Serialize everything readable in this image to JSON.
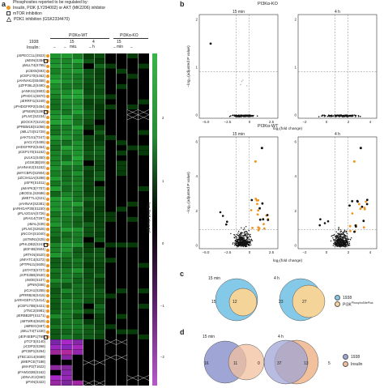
{
  "panel_a": {
    "letter": "a",
    "legend_title": "Phosphosites reported to be regulated by:",
    "legend_items": [
      {
        "symbol": "orange-circle",
        "label": "Insulin, PI3K (LY294002) or AKT (MK2206) inhibitor",
        "color": "#f0941f"
      },
      {
        "symbol": "square",
        "label": "mTOR inhibition"
      },
      {
        "symbol": "triangle",
        "label": "PDK1 inhibition (GSK2334470)"
      }
    ],
    "header_1938": "1938:",
    "header_insulin": "Insulin:",
    "group_wt": "PI3Kα-WT",
    "group_ko": "PI3Kα-KO",
    "col_labels_1938": [
      "−",
      "+",
      "−",
      "+",
      "−",
      "+"
    ],
    "col_labels_time": [
      "15 min",
      "4 h",
      "15 min"
    ],
    "col_labels_insulin": [
      "−",
      "−",
      "−",
      "−",
      "−",
      "−"
    ],
    "colorbar_label": "log₂(fold change)",
    "colorbar_ticks": [
      "2",
      "1",
      "0",
      "−1",
      "−2"
    ],
    "rows": [
      {
        "label": "pSPECC1L(S923)",
        "orange": true
      },
      {
        "label": "pMSN(S384)",
        "orange": true,
        "tri": true
      },
      {
        "label": "pMLLT4(S795)",
        "orange": true
      },
      {
        "label": "pCBX5(S93)",
        "orange": true
      },
      {
        "label": "pCEP170(S462)",
        "orange": true
      },
      {
        "label": "pAHNAK2(S5458)",
        "orange": true
      },
      {
        "label": "pZFP36L2(S490)",
        "orange": true
      },
      {
        "label": "pANKS1(S903)",
        "orange": true
      },
      {
        "label": "pPHDC1(S870)",
        "orange": true
      },
      {
        "label": "pERRFI1(S249)",
        "orange": true
      },
      {
        "label": "pPHDGFRP2(S454)",
        "orange": true
      },
      {
        "label": "pPNISR(S290)",
        "orange": true,
        "sq": true
      },
      {
        "label": "pFLNC(S2234)",
        "orange": true
      },
      {
        "label": "pDOCK7(S219)",
        "orange": true
      },
      {
        "label": "pPRBM1B(S1058)",
        "orange": true
      },
      {
        "label": "pMLLT4(S1729)",
        "orange": true
      },
      {
        "label": "pAKT1S1(T247)",
        "orange": true
      },
      {
        "label": "pACLY(S455)",
        "orange": true
      },
      {
        "label": "pHDGFRP2(S454)",
        "orange": true
      },
      {
        "label": "pCEP170(S1152)",
        "orange": true
      },
      {
        "label": "pULK1(S450)",
        "orange": true
      },
      {
        "label": "pGSK3B(S9)",
        "orange": true
      },
      {
        "label": "pAHNAK2(S1152)",
        "orange": true
      },
      {
        "label": "pMYCBP2(S2904)",
        "orange": true
      },
      {
        "label": "pZC3H11A(S288)",
        "orange": true
      },
      {
        "label": "pSFR(S1011)",
        "orange": true
      },
      {
        "label": "pMAPK3(Y707)",
        "orange": true
      },
      {
        "label": "pBOD1L(S2686)",
        "orange": true
      },
      {
        "label": "pMETTL1(S21)",
        "orange": true
      },
      {
        "label": "pAHNAK(S2381)",
        "orange": true
      },
      {
        "label": "pARHGAP35(S1150)",
        "orange": true
      },
      {
        "label": "pPLA2G4A(S726)",
        "orange": true
      },
      {
        "label": "pRAI14(T297)",
        "orange": true
      },
      {
        "label": "pMAL(S39)",
        "orange": true
      },
      {
        "label": "pFLNC(S2626)",
        "orange": true
      },
      {
        "label": "pNCOA(S1040)",
        "orange": true
      },
      {
        "label": "pSTMN1(S25)",
        "orange": true
      },
      {
        "label": "pPHLDB2(S241)",
        "orange": true,
        "sq": true
      },
      {
        "label": "pEIF4B(S504)",
        "orange": true
      },
      {
        "label": "pRTKN(S520)",
        "orange": true
      },
      {
        "label": "pNFATC4(S272)",
        "orange": true
      },
      {
        "label": "pPTPN21(S605)",
        "orange": true
      },
      {
        "label": "pSTAT3(S727)",
        "orange": true
      },
      {
        "label": "pVPS35B(S530)",
        "orange": true
      },
      {
        "label": "pNOE(S107)",
        "orange": true
      },
      {
        "label": "pPNN(S66)",
        "orange": true
      },
      {
        "label": "pGJA1(S255)",
        "orange": true
      },
      {
        "label": "pPRRB26(S415)",
        "orange": true
      },
      {
        "label": "pARHGEF17(S414)",
        "orange": true
      },
      {
        "label": "pCEP170B(S421)",
        "orange": true
      },
      {
        "label": "pTNC2(S981)",
        "orange": true
      },
      {
        "label": "pERBB2IP(S1171)",
        "orange": true
      },
      {
        "label": "pMTMR4(S629)",
        "orange": true
      },
      {
        "label": "pMREG(S97)",
        "orange": true
      },
      {
        "label": "pMLLT4(T1330)",
        "orange": true
      },
      {
        "label": "pEIF4EBP1(T69)",
        "orange": true,
        "tri": true
      },
      {
        "label": "pTCF3(S140)",
        "orange": false
      },
      {
        "label": "pCDP2(S268)",
        "orange": false
      },
      {
        "label": "pPCBP1(S264)",
        "orange": false
      },
      {
        "label": "pTBC1D14(S689)",
        "orange": false
      },
      {
        "label": "pMEPCE(T188)",
        "orange": false
      },
      {
        "label": "pMAP2(T1622)",
        "orange": false
      },
      {
        "label": "pFAM102B(S162)",
        "orange": false
      },
      {
        "label": "pDNAJC2(S60)",
        "orange": false
      },
      {
        "label": "pPXN(S322)",
        "orange": false
      }
    ]
  },
  "panel_b": {
    "letter": "b",
    "ko_title": "PI3Kα-KO",
    "wt_title": "PI3Kα-WT",
    "time_15": "15 min",
    "time_4h": "4 h",
    "ylabel": "−log₁₀(adjusted P value)",
    "xlabel": "log₂(fold change)",
    "ko_yticks": [
      "2",
      "1",
      "0"
    ],
    "wt_yticks": [
      "6",
      "4",
      "2",
      "0"
    ],
    "xticks_15": [
      "−5.0",
      "−2.5",
      "0",
      "2.5"
    ],
    "xticks_4h": [
      "−2",
      "0",
      "2",
      "4"
    ]
  },
  "panel_c": {
    "letter": "c",
    "title_15": "15 min",
    "title_4h": "4 h",
    "venn_15": {
      "only_1938": "15",
      "both": "12"
    },
    "venn_4h": {
      "only_1938": "23",
      "both": "27"
    },
    "legend": [
      {
        "label": "1938",
        "color": "#84c9e8"
      },
      {
        "label": "PI3K",
        "sup": "PhosphoSitePlus",
        "color": "#f5d49a"
      }
    ]
  },
  "panel_d": {
    "letter": "d",
    "title_15": "15 min",
    "title_4h": "4 h",
    "venn_15": {
      "left": "16",
      "both": "11",
      "right": "0"
    },
    "venn_4h": {
      "left": "37",
      "both": "13",
      "right": "5"
    },
    "legend": [
      {
        "label": "1938",
        "color": "#9fa6d6"
      },
      {
        "label": "Insulin",
        "color": "#f1c09d"
      }
    ]
  },
  "colors": {
    "orange": "#f0941f",
    "green": "#39b54a",
    "purple": "#a04ab0",
    "black": "#000000"
  }
}
